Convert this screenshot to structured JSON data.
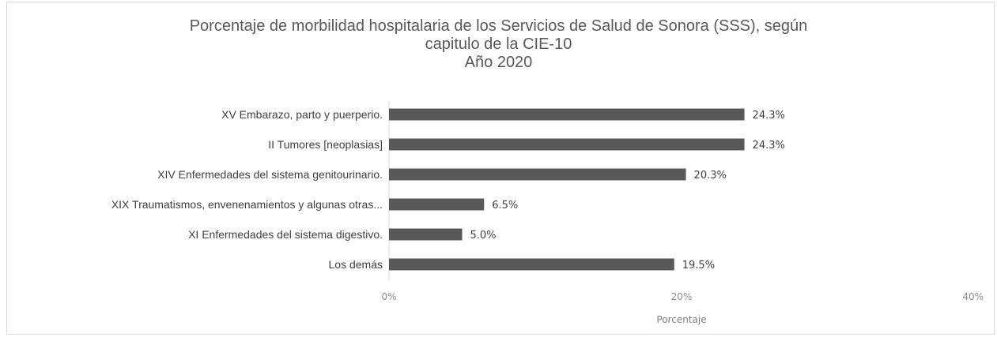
{
  "chart_data": {
    "type": "bar",
    "orientation": "horizontal",
    "title_lines": [
      "Porcentaje de morbilidad hospitalaria de los Servicios de Salud de Sonora (SSS), según",
      "capitulo de la CIE-10",
      "Año 2020"
    ],
    "categories": [
      "XV Embarazo, parto y puerperio.",
      "II Tumores [neoplasias]",
      "XIV Enfermedades del sistema genitourinario.",
      "XIX Traumatismos, envenenamientos y algunas otras...",
      "XI Enfermedades del sistema digestivo.",
      "Los demás"
    ],
    "values": [
      24.3,
      24.3,
      20.3,
      6.5,
      5.0,
      19.5
    ],
    "value_labels": [
      "24.3%",
      "24.3%",
      "20.3%",
      "6.5%",
      "5.0%",
      "19.5%"
    ],
    "xlabel": "Porcentaje",
    "ylabel": "",
    "xlim": [
      0,
      40
    ],
    "x_ticks": [
      0,
      20,
      40
    ],
    "x_tick_labels": [
      "0%",
      "20%",
      "40%"
    ],
    "grid": false,
    "bar_color": "#595959"
  }
}
